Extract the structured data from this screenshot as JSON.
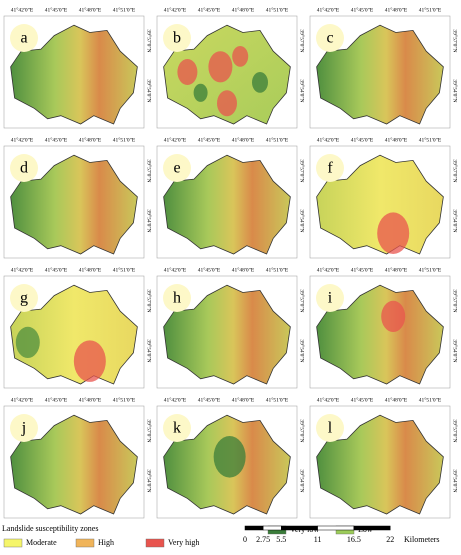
{
  "panels": [
    {
      "label": "a"
    },
    {
      "label": "b"
    },
    {
      "label": "c"
    },
    {
      "label": "d"
    },
    {
      "label": "e"
    },
    {
      "label": "f"
    },
    {
      "label": "g"
    },
    {
      "label": "h"
    },
    {
      "label": "i"
    },
    {
      "label": "j"
    },
    {
      "label": "k"
    },
    {
      "label": "l"
    }
  ],
  "lon_labels": [
    "41°42'0\"E",
    "41°45'0\"E",
    "41°48'0\"E",
    "41°51'0\"E"
  ],
  "lat_labels": [
    "39°57'0\"N",
    "39°54'0\"N"
  ],
  "legend": {
    "title": "Landslide susceptibility zones",
    "items": [
      {
        "name": "Very low",
        "color": "#3a7d3a"
      },
      {
        "name": "Low",
        "color": "#9ccc5a"
      },
      {
        "name": "Moderate",
        "color": "#f5f56a"
      },
      {
        "name": "High",
        "color": "#f0b45a"
      },
      {
        "name": "Very high",
        "color": "#e8544e"
      }
    ]
  },
  "scale_bar": {
    "ticks": [
      0,
      2.75,
      5.5,
      11,
      16.5,
      22
    ],
    "unit": "Kilometers"
  }
}
